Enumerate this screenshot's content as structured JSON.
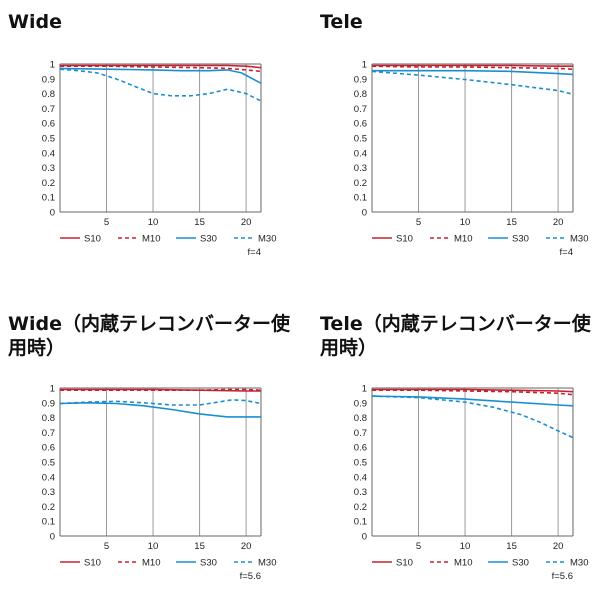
{
  "colors": {
    "red": "#c8202f",
    "blue": "#1a8fcf",
    "grid": "#9a9a9a",
    "axis": "#666666"
  },
  "legend": [
    {
      "label": "S10",
      "color": "#c8202f",
      "dashed": false
    },
    {
      "label": "M10",
      "color": "#c8202f",
      "dashed": true
    },
    {
      "label": "S30",
      "color": "#1a8fcf",
      "dashed": false
    },
    {
      "label": "M30",
      "color": "#1a8fcf",
      "dashed": true
    }
  ],
  "chart_data": [
    {
      "type": "line",
      "title": "Wide",
      "aperture": "f=4",
      "xlim": [
        0,
        21.6
      ],
      "ylim": [
        0,
        1
      ],
      "xticks": [
        5,
        10,
        15,
        20
      ],
      "yticks": [
        0,
        0.1,
        0.2,
        0.3,
        0.4,
        0.5,
        0.6,
        0.7,
        0.8,
        0.9,
        1
      ],
      "ytick_labels": [
        "0",
        "0.1",
        "0.2",
        "0.3",
        "0.4",
        "0.5",
        "0.6",
        "0.7",
        "0.8",
        "0.9",
        "1"
      ],
      "grid": true,
      "series": [
        {
          "name": "S10",
          "x": [
            0,
            5,
            10,
            15,
            18,
            20,
            21.6
          ],
          "y": [
            0.99,
            0.99,
            0.99,
            0.99,
            0.99,
            0.985,
            0.975
          ]
        },
        {
          "name": "M10",
          "x": [
            0,
            5,
            10,
            15,
            18,
            20,
            21.6
          ],
          "y": [
            0.985,
            0.985,
            0.98,
            0.975,
            0.97,
            0.96,
            0.95
          ]
        },
        {
          "name": "S30",
          "x": [
            0,
            5,
            10,
            13,
            16,
            18,
            19.5,
            21,
            21.6
          ],
          "y": [
            0.97,
            0.965,
            0.96,
            0.955,
            0.955,
            0.96,
            0.94,
            0.89,
            0.87
          ]
        },
        {
          "name": "M30",
          "x": [
            0,
            2,
            4,
            6,
            8,
            10,
            12,
            14,
            16,
            18,
            20,
            21.6
          ],
          "y": [
            0.965,
            0.955,
            0.94,
            0.9,
            0.85,
            0.8,
            0.785,
            0.785,
            0.8,
            0.83,
            0.8,
            0.75
          ]
        }
      ]
    },
    {
      "type": "line",
      "title": "Tele",
      "aperture": "f=4",
      "xlim": [
        0,
        21.6
      ],
      "ylim": [
        0,
        1
      ],
      "xticks": [
        5,
        10,
        15,
        20
      ],
      "yticks": [
        0,
        0.1,
        0.2,
        0.3,
        0.4,
        0.5,
        0.6,
        0.7,
        0.8,
        0.9,
        1
      ],
      "ytick_labels": [
        "0",
        "0.1",
        "0.2",
        "0.3",
        "0.4",
        "0.5",
        "0.6",
        "0.7",
        "0.8",
        "0.9",
        "1"
      ],
      "grid": true,
      "series": [
        {
          "name": "S10",
          "x": [
            0,
            5,
            10,
            15,
            20,
            21.6
          ],
          "y": [
            0.99,
            0.99,
            0.99,
            0.99,
            0.985,
            0.985
          ]
        },
        {
          "name": "M10",
          "x": [
            0,
            5,
            10,
            15,
            20,
            21.6
          ],
          "y": [
            0.985,
            0.98,
            0.98,
            0.975,
            0.97,
            0.965
          ]
        },
        {
          "name": "S30",
          "x": [
            0,
            5,
            10,
            15,
            20,
            21.6
          ],
          "y": [
            0.955,
            0.955,
            0.955,
            0.95,
            0.935,
            0.93
          ]
        },
        {
          "name": "M30",
          "x": [
            0,
            5,
            10,
            15,
            20,
            21.6
          ],
          "y": [
            0.95,
            0.925,
            0.895,
            0.86,
            0.82,
            0.795
          ]
        }
      ]
    },
    {
      "type": "line",
      "title": "Wide（内蔵テレコンバーター使用時）",
      "aperture": "f=5.6",
      "xlim": [
        0,
        21.6
      ],
      "ylim": [
        0,
        1
      ],
      "xticks": [
        5,
        10,
        15,
        20
      ],
      "yticks": [
        0,
        0.1,
        0.2,
        0.3,
        0.4,
        0.5,
        0.6,
        0.7,
        0.8,
        0.9,
        1
      ],
      "ytick_labels": [
        "0",
        "0.1",
        "0.2",
        "0.3",
        "0.4",
        "0.5",
        "0.6",
        "0.7",
        "0.8",
        "0.9",
        "1"
      ],
      "grid": true,
      "series": [
        {
          "name": "S10",
          "x": [
            0,
            5,
            10,
            15,
            20,
            21.6
          ],
          "y": [
            0.99,
            0.99,
            0.99,
            0.985,
            0.98,
            0.98
          ]
        },
        {
          "name": "M10",
          "x": [
            0,
            5,
            10,
            15,
            18,
            20,
            21.6
          ],
          "y": [
            0.985,
            0.985,
            0.985,
            0.985,
            0.99,
            0.99,
            0.985
          ]
        },
        {
          "name": "S30",
          "x": [
            0,
            3,
            6,
            9,
            12,
            15,
            18,
            21.6
          ],
          "y": [
            0.895,
            0.9,
            0.895,
            0.88,
            0.855,
            0.825,
            0.805,
            0.805
          ]
        },
        {
          "name": "M30",
          "x": [
            0,
            3,
            6,
            9,
            12,
            15,
            17,
            18.5,
            20,
            21.6
          ],
          "y": [
            0.895,
            0.905,
            0.91,
            0.9,
            0.885,
            0.885,
            0.905,
            0.92,
            0.915,
            0.895
          ]
        }
      ]
    },
    {
      "type": "line",
      "title": "Tele（内蔵テレコンバーター使用時）",
      "aperture": "f=5.6",
      "xlim": [
        0,
        21.6
      ],
      "ylim": [
        0,
        1
      ],
      "xticks": [
        5,
        10,
        15,
        20
      ],
      "yticks": [
        0,
        0.1,
        0.2,
        0.3,
        0.4,
        0.5,
        0.6,
        0.7,
        0.8,
        0.9,
        1
      ],
      "ytick_labels": [
        "0",
        "0.1",
        "0.2",
        "0.3",
        "0.4",
        "0.5",
        "0.6",
        "0.7",
        "0.8",
        "0.9",
        "1"
      ],
      "grid": true,
      "series": [
        {
          "name": "S10",
          "x": [
            0,
            5,
            10,
            15,
            20,
            21.6
          ],
          "y": [
            0.99,
            0.99,
            0.99,
            0.985,
            0.98,
            0.975
          ]
        },
        {
          "name": "M10",
          "x": [
            0,
            5,
            10,
            15,
            20,
            21.6
          ],
          "y": [
            0.985,
            0.985,
            0.98,
            0.975,
            0.965,
            0.955
          ]
        },
        {
          "name": "S30",
          "x": [
            0,
            5,
            10,
            15,
            20,
            21.6
          ],
          "y": [
            0.945,
            0.94,
            0.925,
            0.905,
            0.885,
            0.88
          ]
        },
        {
          "name": "M30",
          "x": [
            0,
            5,
            10,
            13,
            16,
            18,
            20,
            21.6
          ],
          "y": [
            0.945,
            0.935,
            0.905,
            0.87,
            0.82,
            0.77,
            0.71,
            0.665
          ]
        }
      ]
    }
  ]
}
